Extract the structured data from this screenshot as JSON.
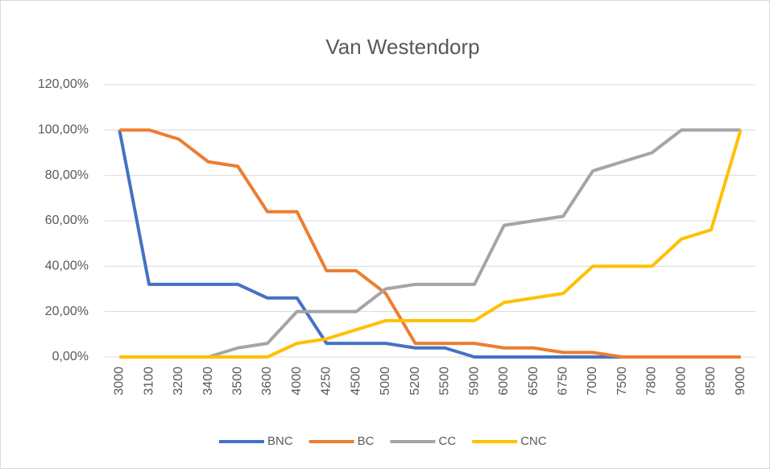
{
  "chart_data": {
    "type": "line",
    "title": "Van Westendorp",
    "categories": [
      "3000",
      "3100",
      "3200",
      "3400",
      "3500",
      "3600",
      "4000",
      "4250",
      "4500",
      "5000",
      "5200",
      "5500",
      "5900",
      "6000",
      "6500",
      "6750",
      "7000",
      "7500",
      "7800",
      "8000",
      "8500",
      "9000"
    ],
    "series": [
      {
        "name": "BNC",
        "color": "#4472c4",
        "values": [
          100,
          32,
          32,
          32,
          32,
          26,
          26,
          6,
          6,
          6,
          4,
          4,
          0,
          0,
          0,
          0,
          0,
          0,
          0,
          0,
          0,
          0
        ]
      },
      {
        "name": "BC",
        "color": "#ed7d31",
        "values": [
          100,
          100,
          96,
          86,
          84,
          64,
          64,
          38,
          38,
          28,
          6,
          6,
          6,
          4,
          4,
          2,
          2,
          0,
          0,
          0,
          0,
          0
        ]
      },
      {
        "name": "CC",
        "color": "#a5a5a5",
        "values": [
          0,
          0,
          0,
          0,
          4,
          6,
          20,
          20,
          20,
          30,
          32,
          32,
          32,
          58,
          60,
          62,
          82,
          86,
          90,
          100,
          100,
          100
        ]
      },
      {
        "name": "CNC",
        "color": "#ffc000",
        "values": [
          0,
          0,
          0,
          0,
          0,
          0,
          6,
          8,
          12,
          16,
          16,
          16,
          16,
          24,
          26,
          28,
          40,
          40,
          40,
          52,
          56,
          100
        ]
      }
    ],
    "ylim": [
      0,
      120
    ],
    "yticks": [
      {
        "value": 0,
        "label": "0,00%"
      },
      {
        "value": 20,
        "label": "20,00%"
      },
      {
        "value": 40,
        "label": "40,00%"
      },
      {
        "value": 60,
        "label": "60,00%"
      },
      {
        "value": 80,
        "label": "80,00%"
      },
      {
        "value": 100,
        "label": "100,00%"
      },
      {
        "value": 120,
        "label": "120,00%"
      }
    ],
    "grid": true,
    "legend": "bottom"
  }
}
